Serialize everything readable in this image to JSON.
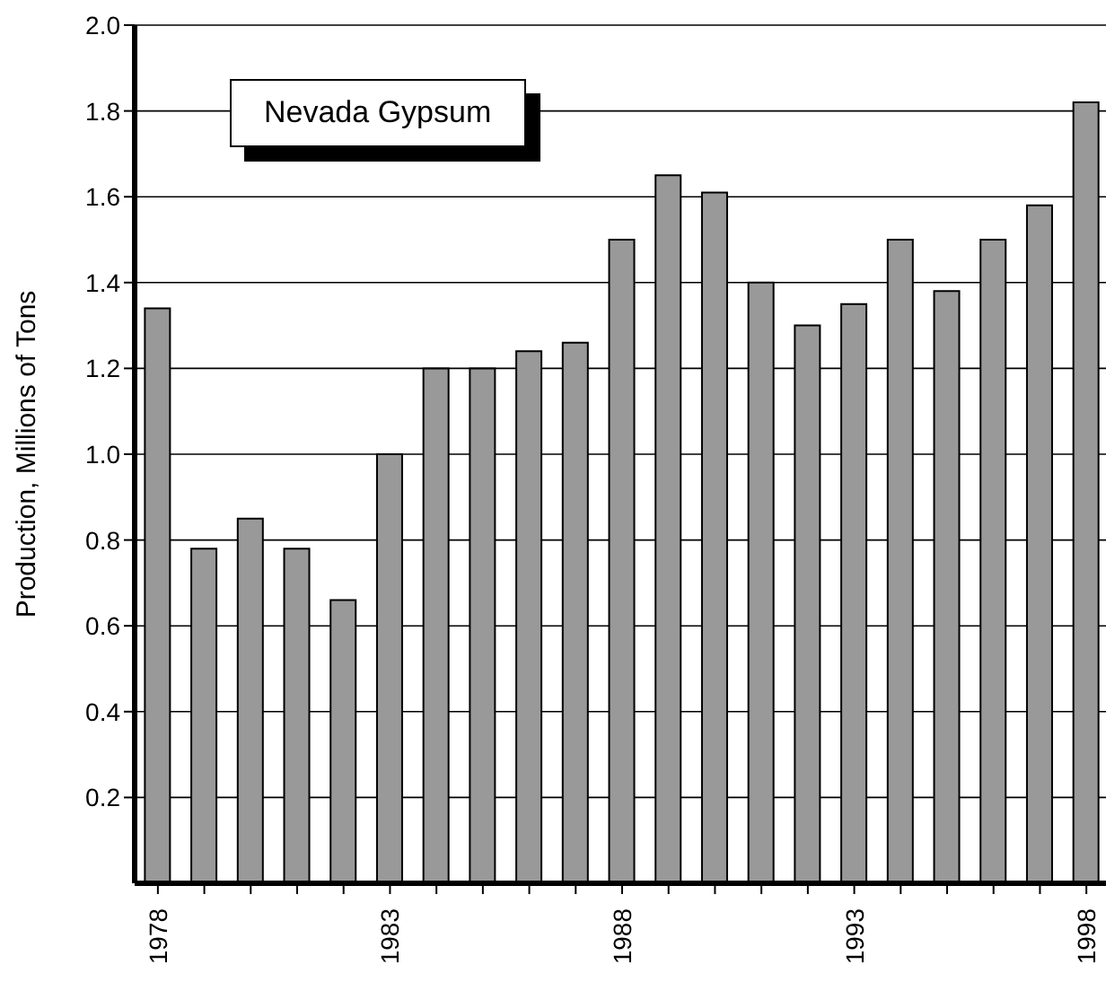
{
  "chart_data": {
    "type": "bar",
    "title": "Nevada  Gypsum",
    "ylabel": "Production,  Millions of Tons",
    "categories": [
      "1978",
      null,
      null,
      null,
      null,
      "1983",
      null,
      null,
      null,
      null,
      "1988",
      null,
      null,
      null,
      null,
      "1993",
      null,
      null,
      null,
      null,
      "1998"
    ],
    "values": [
      1.34,
      0.78,
      0.85,
      0.78,
      0.66,
      1.0,
      1.2,
      1.2,
      1.24,
      1.26,
      1.5,
      1.65,
      1.61,
      1.4,
      1.3,
      1.35,
      1.5,
      1.38,
      1.5,
      1.58,
      1.82
    ],
    "color": "#999999",
    "ylim": [
      0,
      2
    ],
    "yticks": [
      0.2,
      0.4,
      0.6,
      0.8,
      {
        "value": 1,
        "label": "1.0"
      },
      1.2,
      1.4,
      1.6,
      1.8,
      {
        "value": 2,
        "label": "2.0"
      }
    ],
    "grid": "y"
  }
}
